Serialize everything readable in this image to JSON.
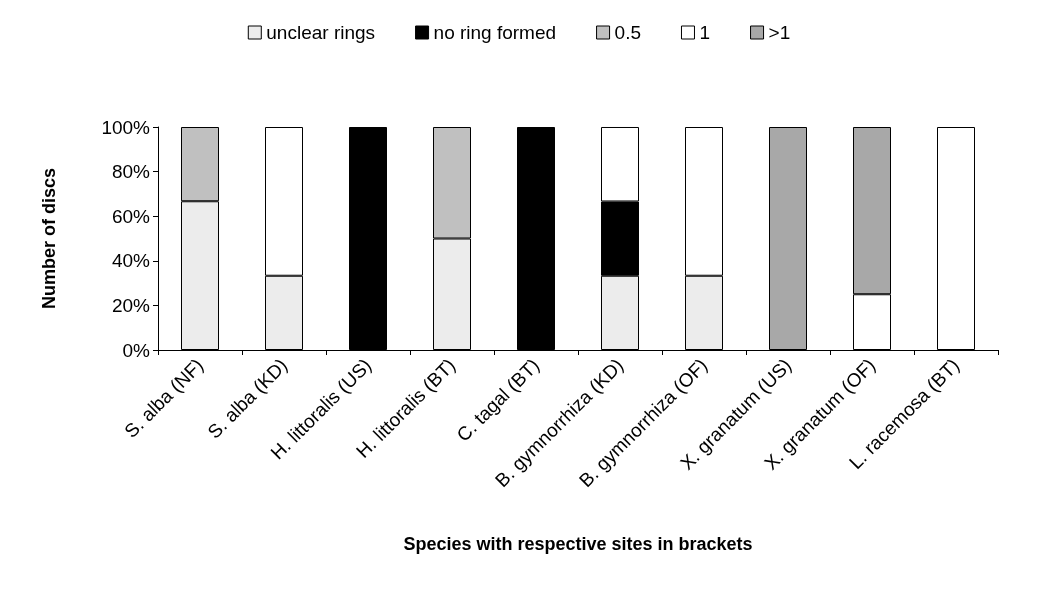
{
  "chart_data": {
    "type": "bar",
    "stacked": true,
    "xlabel": "Species with respective sites in brackets",
    "ylabel": "Number of discs",
    "categories": [
      "S. alba (NF)",
      "S. alba (KD)",
      "H. littoralis (US)",
      "H. littoralis (BT)",
      "C. tagal (BT)",
      "B. gymnorrhiza (KD)",
      "B. gymnorrhiza (OF)",
      "X. granatum (US)",
      "X. granatum (OF)",
      "L. racemosa (BT)"
    ],
    "series": [
      {
        "name": "unclear rings",
        "color": "#ececec",
        "values": [
          66.7,
          33.3,
          0,
          50,
          0,
          33.3,
          33.3,
          0,
          0,
          0
        ]
      },
      {
        "name": "no ring formed",
        "color": "#000000",
        "values": [
          0,
          0,
          100,
          0,
          100,
          33.3,
          0,
          0,
          0,
          0
        ]
      },
      {
        "name": "0.5",
        "color": "#c0c0c0",
        "values": [
          33.3,
          0,
          0,
          50,
          0,
          0,
          0,
          0,
          0,
          0
        ]
      },
      {
        "name": "1",
        "color": "#ffffff",
        "values": [
          0,
          66.7,
          0,
          0,
          0,
          33.4,
          66.7,
          0,
          25,
          100
        ]
      },
      {
        "name": ">1",
        "color": "#a8a8a8",
        "values": [
          0,
          0,
          0,
          0,
          0,
          0,
          0,
          100,
          75,
          0
        ]
      }
    ],
    "ylim": [
      0,
      100
    ],
    "yticks": [
      {
        "value": 0,
        "label": "0%"
      },
      {
        "value": 20,
        "label": "20%"
      },
      {
        "value": 40,
        "label": "40%"
      },
      {
        "value": 60,
        "label": "60%"
      },
      {
        "value": 80,
        "label": "80%"
      },
      {
        "value": 100,
        "label": "100%"
      }
    ],
    "grid": false,
    "legend": "top"
  }
}
